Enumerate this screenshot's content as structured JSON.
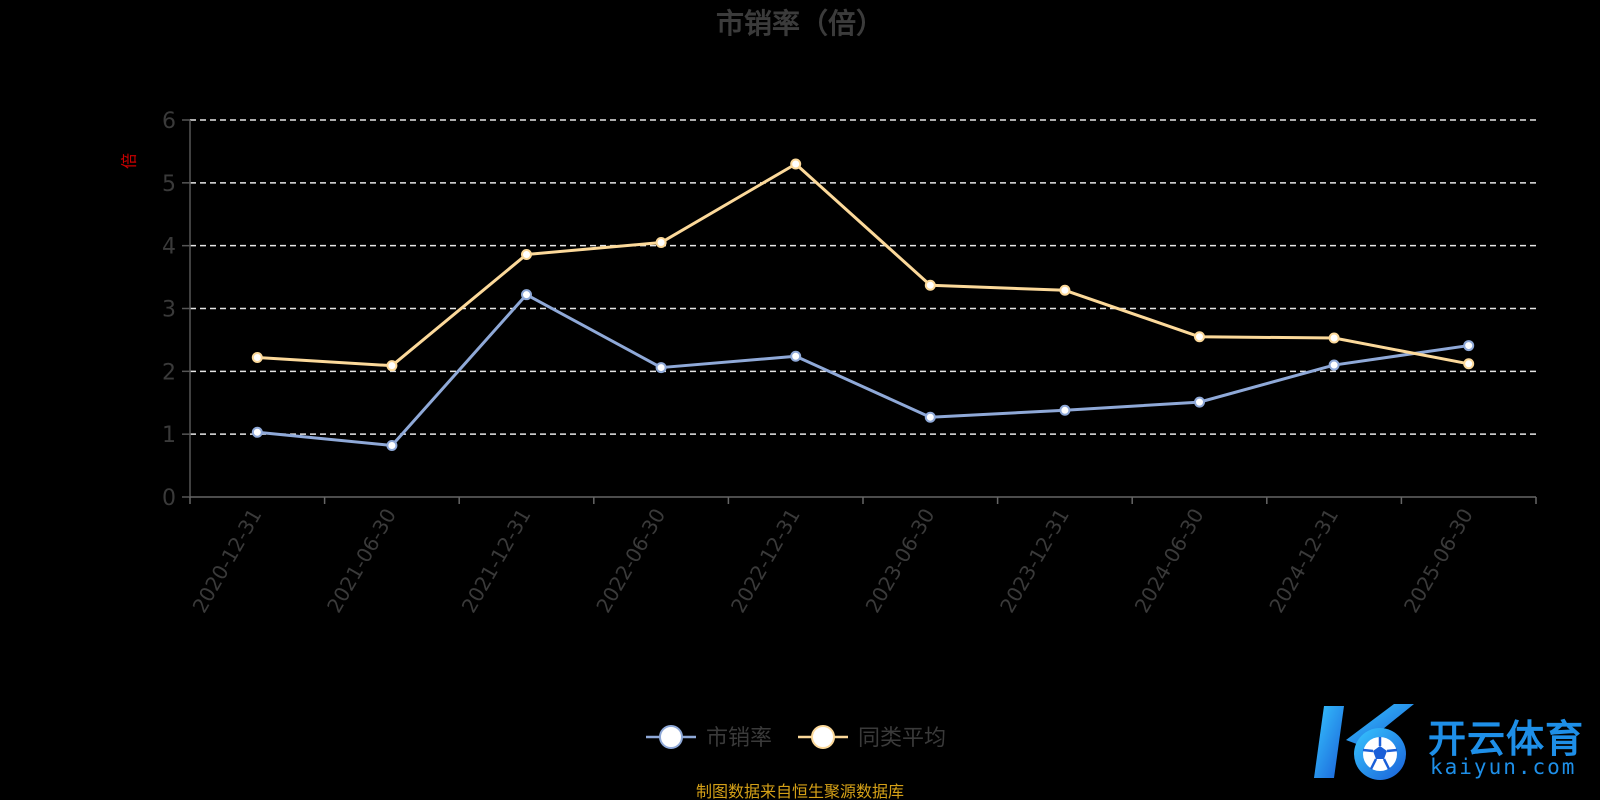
{
  "chart_data": {
    "type": "line",
    "title": "市销率（倍）",
    "ylabel": "倍",
    "xlabel": "",
    "ylim": [
      0,
      6
    ],
    "yticks": [
      0,
      1,
      2,
      3,
      4,
      5,
      6
    ],
    "grid": true,
    "legend_position": "bottom-center",
    "categories": [
      "2020-12-31",
      "2021-06-30",
      "2021-12-31",
      "2022-06-30",
      "2022-12-31",
      "2023-06-30",
      "2023-12-31",
      "2024-06-30",
      "2024-12-31",
      "2025-06-30"
    ],
    "series": [
      {
        "name": "市销率",
        "color": "#8fa9d8",
        "values": [
          1.03,
          0.82,
          3.22,
          2.06,
          2.24,
          1.27,
          1.38,
          1.51,
          2.1,
          2.41
        ]
      },
      {
        "name": "同类平均",
        "color": "#fcd99a",
        "values": [
          2.22,
          2.09,
          3.86,
          4.05,
          5.3,
          3.37,
          3.29,
          2.55,
          2.53,
          2.12
        ]
      }
    ]
  },
  "footer": {
    "source": "制图数据来自恒生聚源数据库"
  },
  "watermark": {
    "brand_cn": "开云体育",
    "brand_en": "kaiyun.com",
    "color": "#1e8fe8"
  }
}
